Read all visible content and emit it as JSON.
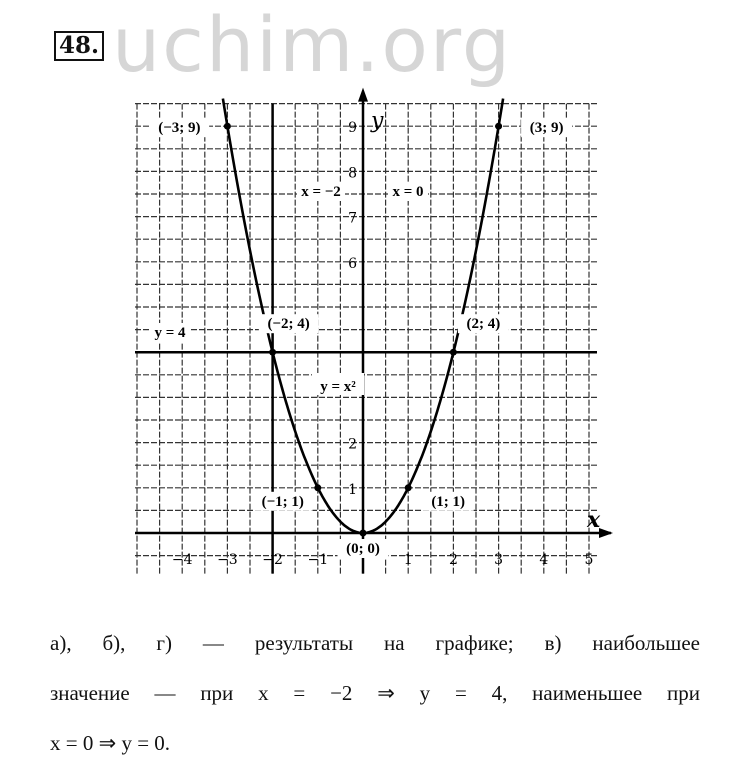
{
  "watermark": "uchim.org",
  "problem_number": "48.",
  "chart_data": {
    "type": "line",
    "function_label": "y = x²",
    "series": [
      {
        "name": "y = x²",
        "x_range": [
          -3.1,
          3.1
        ]
      }
    ],
    "points": [
      {
        "x": -3,
        "y": 9,
        "label": "(−3; 9)"
      },
      {
        "x": 3,
        "y": 9,
        "label": "(3; 9)"
      },
      {
        "x": -2,
        "y": 4,
        "label": "(−2; 4)"
      },
      {
        "x": 2,
        "y": 4,
        "label": "(2; 4)"
      },
      {
        "x": -1,
        "y": 1,
        "label": "(−1; 1)"
      },
      {
        "x": 1,
        "y": 1,
        "label": "(1; 1)"
      },
      {
        "x": 0,
        "y": 0,
        "label": "(0; 0)"
      }
    ],
    "reference_lines": [
      {
        "type": "vertical",
        "x": -2,
        "label": "x = −2"
      },
      {
        "type": "vertical",
        "x": 0,
        "label": "x = 0"
      },
      {
        "type": "horizontal",
        "y": 4,
        "label": "y = 4"
      }
    ],
    "xlabel": "x",
    "ylabel": "y",
    "x_ticks": [
      {
        "v": -4,
        "t": "−4"
      },
      {
        "v": -3,
        "t": "−3"
      },
      {
        "v": -2,
        "t": "−2"
      },
      {
        "v": -1,
        "t": "−1"
      },
      {
        "v": 1,
        "t": "1"
      },
      {
        "v": 2,
        "t": "2"
      },
      {
        "v": 3,
        "t": "3"
      },
      {
        "v": 4,
        "t": "4"
      },
      {
        "v": 5,
        "t": "5"
      }
    ],
    "y_ticks": [
      {
        "v": 1,
        "t": "1"
      },
      {
        "v": 2,
        "t": "2"
      },
      {
        "v": 6,
        "t": "6"
      },
      {
        "v": 7,
        "t": "7"
      },
      {
        "v": 8,
        "t": "8"
      },
      {
        "v": 9,
        "t": "9"
      }
    ],
    "xlim": [
      -5,
      5
    ],
    "ylim": [
      -0.9,
      9.5
    ],
    "grid": true,
    "grid_step": 0.5
  },
  "answer": {
    "line1": "а), б), г) — результаты на графике; в) наибольшее",
    "line2": "значение — при x = −2 ⇒ y = 4, наименьшее при",
    "line3": "x = 0 ⇒ y = 0."
  }
}
